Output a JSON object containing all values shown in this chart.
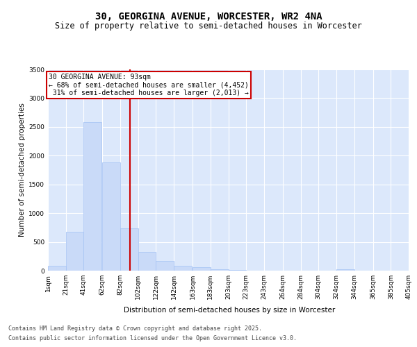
{
  "title_line1": "30, GEORGINA AVENUE, WORCESTER, WR2 4NA",
  "title_line2": "Size of property relative to semi-detached houses in Worcester",
  "xlabel": "Distribution of semi-detached houses by size in Worcester",
  "ylabel": "Number of semi-detached properties",
  "property_label": "30 GEORGINA AVENUE: 93sqm",
  "pct_smaller": 68,
  "count_smaller": 4452,
  "pct_larger": 31,
  "count_larger": 2013,
  "bins": [
    1,
    21,
    41,
    62,
    82,
    102,
    122,
    142,
    163,
    183,
    203,
    223,
    243,
    264,
    284,
    304,
    324,
    344,
    365,
    385,
    405
  ],
  "bin_labels": [
    "1sqm",
    "21sqm",
    "41sqm",
    "62sqm",
    "82sqm",
    "102sqm",
    "122sqm",
    "142sqm",
    "163sqm",
    "183sqm",
    "203sqm",
    "223sqm",
    "243sqm",
    "264sqm",
    "284sqm",
    "304sqm",
    "324sqm",
    "344sqm",
    "365sqm",
    "385sqm",
    "405sqm"
  ],
  "counts": [
    80,
    670,
    2580,
    1880,
    740,
    330,
    165,
    85,
    55,
    30,
    10,
    5,
    2,
    1,
    0,
    0,
    20,
    0,
    0,
    0
  ],
  "bar_color": "#c9daf8",
  "bar_edge_color": "#a4c2f4",
  "vline_color": "#cc0000",
  "vline_x": 93,
  "background_color": "#dce8fb",
  "ylim": [
    0,
    3500
  ],
  "yticks": [
    0,
    500,
    1000,
    1500,
    2000,
    2500,
    3000,
    3500
  ],
  "footer_line1": "Contains HM Land Registry data © Crown copyright and database right 2025.",
  "footer_line2": "Contains public sector information licensed under the Open Government Licence v3.0.",
  "title_fontsize": 10,
  "subtitle_fontsize": 8.5,
  "axis_label_fontsize": 7.5,
  "tick_fontsize": 6.5,
  "annotation_fontsize": 7,
  "footer_fontsize": 6
}
